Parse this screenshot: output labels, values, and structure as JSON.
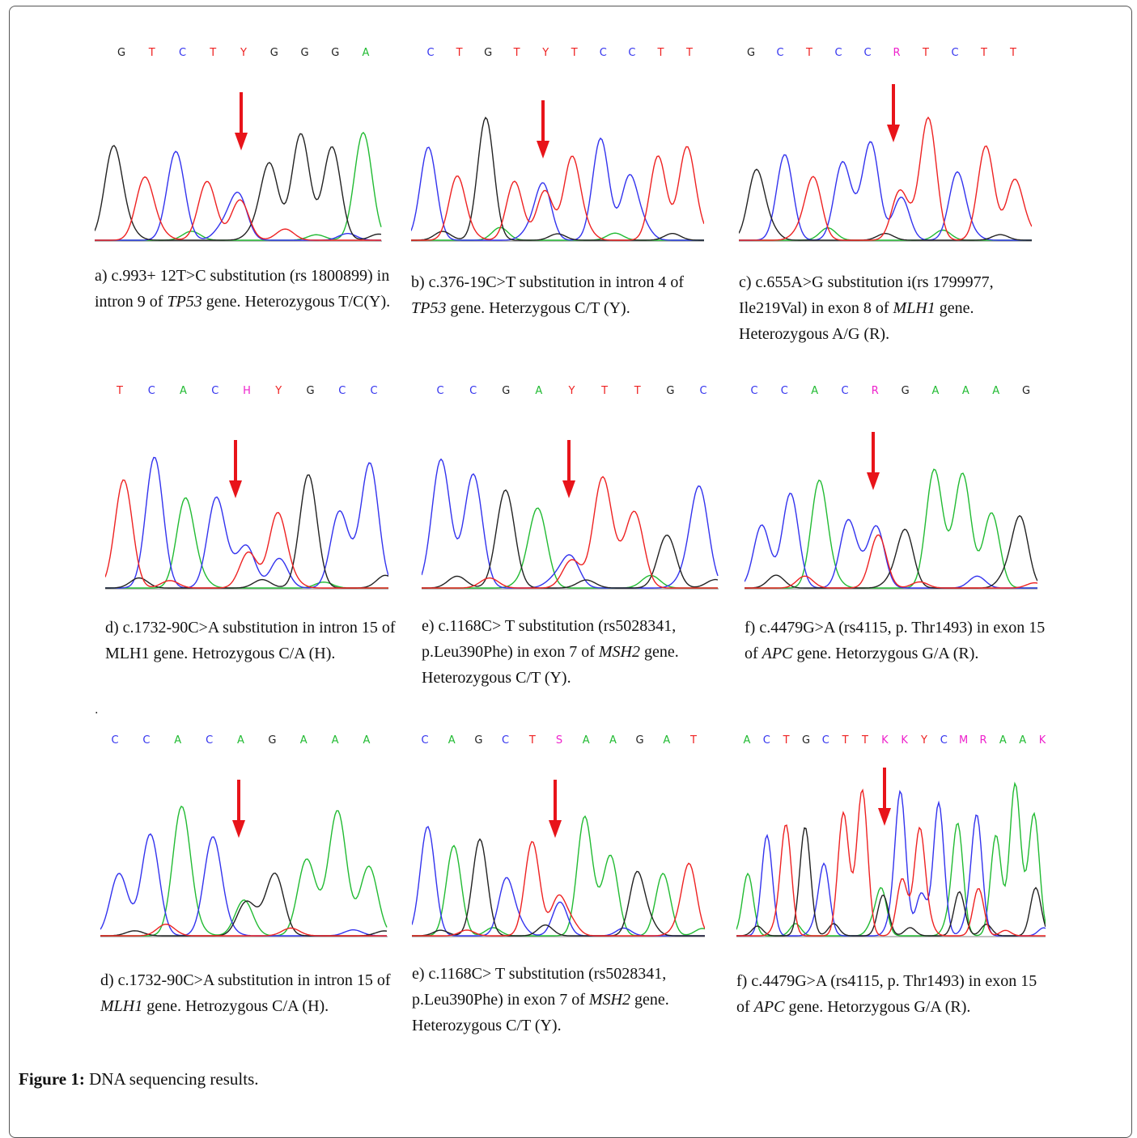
{
  "figure": {
    "label": "Figure 1:",
    "title": "DNA sequencing results."
  },
  "colors": {
    "A": "#22bb33",
    "C": "#3333ee",
    "G": "#222222",
    "T": "#ee2222",
    "ambiguous": "#ee22cc",
    "arrow": "#e8141a"
  },
  "panels": [
    {
      "id": "a",
      "bases": [
        "G",
        "T",
        "C",
        "T",
        "Y",
        "G",
        "G",
        "G",
        "A"
      ],
      "caption_parts": [
        {
          "t": "a) c.993+ 12T>C substitution (rs 1800899) in intron 9 of "
        },
        {
          "t": "TP53",
          "i": true
        },
        {
          "t": "  gene. Heterozygous T/C(Y)."
        }
      ]
    },
    {
      "id": "b",
      "bases": [
        "C",
        "T",
        "G",
        "T",
        "Y",
        "T",
        "C",
        "C",
        "T",
        "T"
      ],
      "caption_parts": [
        {
          "t": "b) c.376-19C>T substitution in intron 4 of "
        },
        {
          "t": "TP53",
          "i": true
        },
        {
          "t": " gene. Heterzygous C/T (Y)."
        }
      ]
    },
    {
      "id": "c",
      "bases": [
        "G",
        "C",
        "T",
        "C",
        "C",
        "R",
        "T",
        "C",
        "T",
        "T"
      ],
      "caption_parts": [
        {
          "t": "c) c.655A>G substitution i(rs 1799977, Ile219Val) in exon 8 of "
        },
        {
          "t": "MLH1",
          "i": true
        },
        {
          "t": " gene. Heterozygous A/G (R)."
        }
      ]
    },
    {
      "id": "d1",
      "bases": [
        "T",
        "C",
        "A",
        "C",
        "H",
        "Y",
        "G",
        "C",
        "C"
      ],
      "caption_parts": [
        {
          "t": "d) c.1732-90C>A substitution in intron 15 of MLH1 gene. Hetrozygous C/A (H)."
        }
      ]
    },
    {
      "id": "e1",
      "bases": [
        "C",
        "C",
        "G",
        "A",
        "Y",
        "T",
        "T",
        "G",
        "C"
      ],
      "caption_parts": [
        {
          "t": "e) c.1168C> T substitution (rs5028341, p.Leu390Phe) in exon 7 of "
        },
        {
          "t": "MSH2",
          "i": true
        },
        {
          "t": " gene. Heterozygous C/T (Y)."
        }
      ]
    },
    {
      "id": "f1",
      "bases": [
        "C",
        "C",
        "A",
        "C",
        "R",
        "G",
        "A",
        "A",
        "A",
        "G"
      ],
      "caption_parts": [
        {
          "t": "f) c.4479G>A (rs4115, p. Thr1493) in exon 15 of "
        },
        {
          "t": "APC",
          "i": true
        },
        {
          "t": " gene. Hetorzygous G/A (R)."
        }
      ]
    },
    {
      "id": "d2",
      "bases": [
        "C",
        "C",
        "A",
        "C",
        "A",
        "G",
        "A",
        "A",
        "A"
      ],
      "caption_parts": [
        {
          "t": "d) c.1732-90C>A substitution in intron 15 of "
        },
        {
          "t": "MLH1",
          "i": true
        },
        {
          "t": " gene. Hetrozygous C/A (H)."
        }
      ]
    },
    {
      "id": "e2",
      "bases": [
        "C",
        "A",
        "G",
        "C",
        "T",
        "S",
        "A",
        "A",
        "G",
        "A",
        "T"
      ],
      "caption_parts": [
        {
          "t": "e) c.1168C> T substitution (rs5028341, p.Leu390Phe) in exon 7 of "
        },
        {
          "t": "MSH2",
          "i": true
        },
        {
          "t": " gene. Heterozygous C/T (Y)."
        }
      ]
    },
    {
      "id": "f2",
      "bases": [
        "A",
        "C",
        "T",
        "G",
        "C",
        "T",
        "T",
        "K",
        "K",
        "Y",
        "C",
        "M",
        "R",
        "A",
        "A",
        "K"
      ],
      "caption_parts": [
        {
          "t": "f) c.4479G>A (rs4115, p. Thr1493) in exon 15 of "
        },
        {
          "t": "APC",
          "i": true
        },
        {
          "t": " gene. Hetorzygous G/A (R)."
        }
      ]
    }
  ],
  "stray_mark": "."
}
